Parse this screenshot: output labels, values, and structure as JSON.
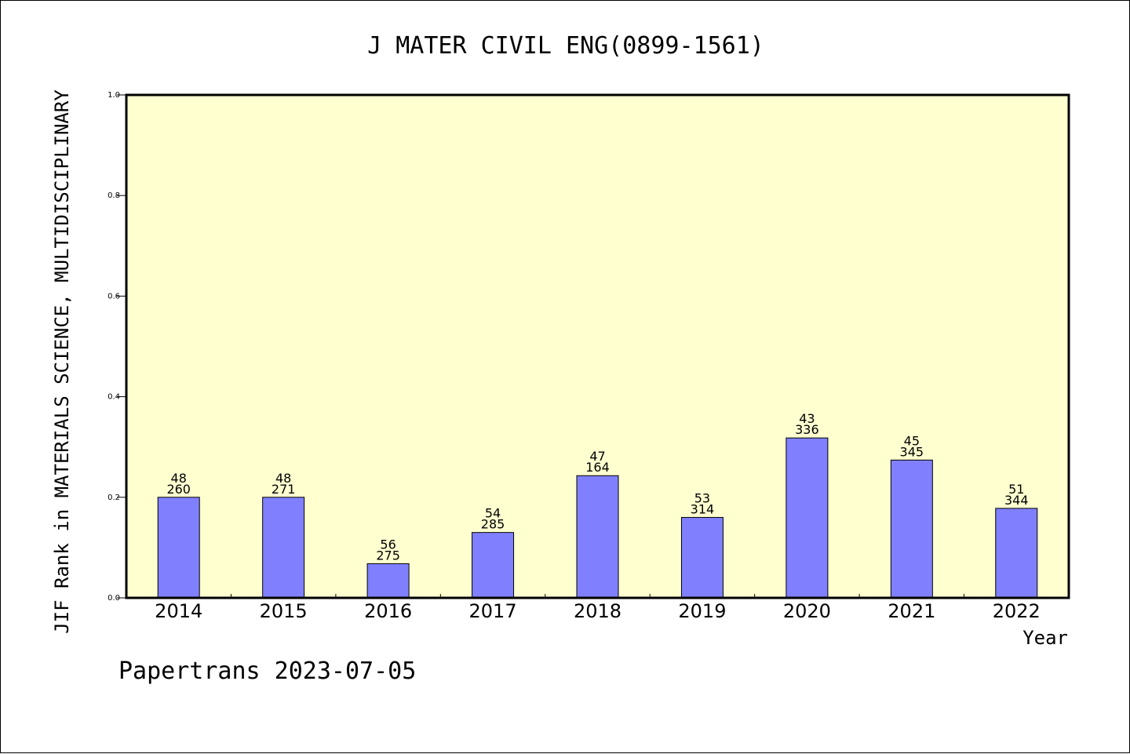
{
  "chart_data": {
    "type": "bar",
    "title": "J MATER CIVIL ENG(0899-1561)",
    "xlabel": "Year",
    "ylabel": "JIF Rank in MATERIALS SCIENCE, MULTIDISCIPLINARY",
    "ylim": [
      0,
      1.0
    ],
    "yticks": [
      "0.0",
      "0.2",
      "0.4",
      "0.6",
      "0.8",
      "1.0"
    ],
    "categories": [
      "2014",
      "2015",
      "2016",
      "2017",
      "2018",
      "2019",
      "2020",
      "2021",
      "2022"
    ],
    "values": [
      0.2,
      0.2,
      0.068,
      0.13,
      0.243,
      0.16,
      0.318,
      0.274,
      0.178
    ],
    "ranks": [
      "48",
      "48",
      "56",
      "54",
      "47",
      "53",
      "43",
      "45",
      "51"
    ],
    "totals": [
      "260",
      "271",
      "275",
      "285",
      "164",
      "314",
      "336",
      "345",
      "344"
    ],
    "grid": false,
    "colors": {
      "plot_background": "#ffffd0",
      "bar_fill": "#8080ff",
      "bar_stroke": "#000000"
    }
  },
  "footer": {
    "text": "Papertrans 2023-07-05"
  }
}
